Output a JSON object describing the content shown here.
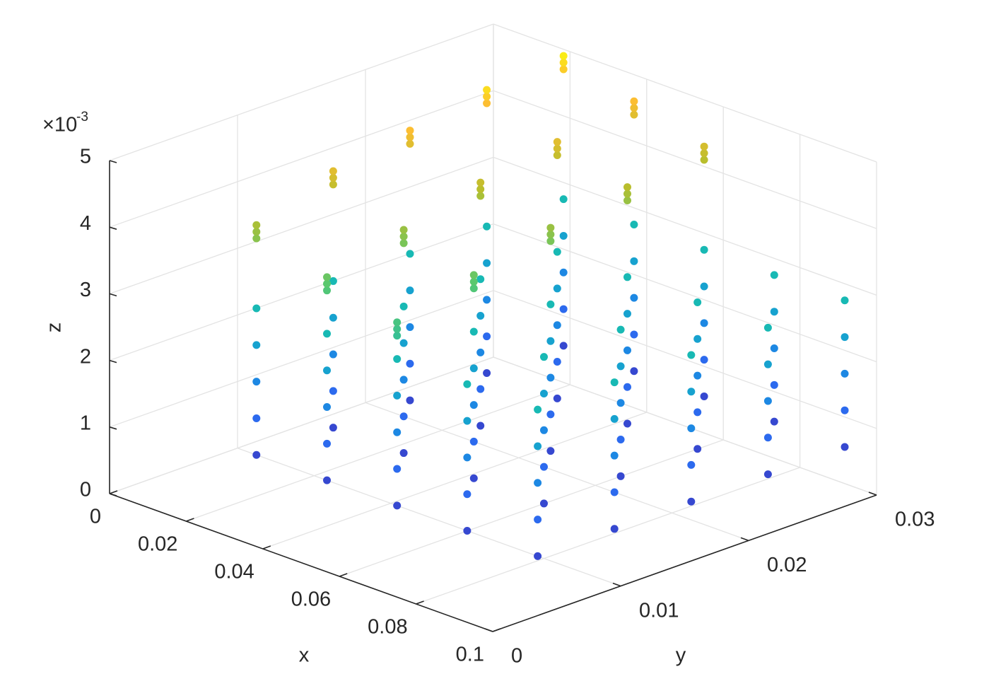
{
  "chart_data": {
    "type": "scatter3",
    "x_label": "x",
    "y_label": "y",
    "z_label": "z",
    "z_multiplier": {
      "base": "×10",
      "power": "-3"
    },
    "colormap": "parula",
    "xlim": [
      0,
      0.1
    ],
    "ylim": [
      0,
      0.03
    ],
    "zlim": [
      0,
      0.005
    ],
    "xticks": [
      0,
      0.02,
      0.04,
      0.06,
      0.08,
      0.1
    ],
    "yticks": [
      0,
      0.01,
      0.02,
      0.03
    ],
    "zticks": [
      0,
      {
        "value": 0.001,
        "label": "1"
      },
      {
        "value": 0.002,
        "label": "2"
      },
      {
        "value": 0.003,
        "label": "3"
      },
      {
        "value": 0.004,
        "label": "4"
      },
      {
        "value": 0.005,
        "label": "5"
      }
    ],
    "grid": true,
    "columns": [
      {
        "x": 0.0183,
        "y": 0.006,
        "z": [
          0.00055,
          0.0011,
          0.00165,
          0.0022,
          0.00275,
          0.0038,
          0.0039,
          0.004
        ]
      },
      {
        "x": 0.0183,
        "y": 0.012,
        "z": [
          0.00055,
          0.0011,
          0.00165,
          0.0022,
          0.00275,
          0.0042,
          0.0043,
          0.0044
        ]
      },
      {
        "x": 0.0183,
        "y": 0.018,
        "z": [
          0.00055,
          0.0011,
          0.00165,
          0.0022,
          0.00275,
          0.0044,
          0.0045,
          0.0046
        ]
      },
      {
        "x": 0.0183,
        "y": 0.024,
        "z": [
          0.00055,
          0.0011,
          0.00165,
          0.0022,
          0.00275,
          0.0046,
          0.0047,
          0.0048
        ]
      },
      {
        "x": 0.0183,
        "y": 0.03,
        "z": [
          0.00055,
          0.0011,
          0.00165,
          0.0022,
          0.00275,
          0.0047,
          0.0048,
          0.0049
        ]
      },
      {
        "x": 0.0367,
        "y": 0.006,
        "z": [
          0.00055,
          0.0011,
          0.00165,
          0.0022,
          0.00275,
          0.0034,
          0.0035,
          0.0036
        ]
      },
      {
        "x": 0.0367,
        "y": 0.012,
        "z": [
          0.00055,
          0.0011,
          0.00165,
          0.0022,
          0.00275,
          0.0037,
          0.0038,
          0.0039
        ]
      },
      {
        "x": 0.0367,
        "y": 0.018,
        "z": [
          0.00055,
          0.0011,
          0.00165,
          0.0022,
          0.00275,
          0.004,
          0.0041,
          0.0042
        ]
      },
      {
        "x": 0.0367,
        "y": 0.024,
        "z": [
          0.00055,
          0.0011,
          0.00165,
          0.0022,
          0.00275,
          0.0042,
          0.0043,
          0.0044
        ]
      },
      {
        "x": 0.0367,
        "y": 0.03,
        "z": [
          0.00055,
          0.0011,
          0.00165,
          0.0022,
          0.00275,
          0.0044,
          0.0045,
          0.0046
        ]
      },
      {
        "x": 0.055,
        "y": 0.006,
        "z": [
          0.00055,
          0.0011,
          0.00165,
          0.0022,
          0.00275,
          0.0031,
          0.0032,
          0.0033
        ]
      },
      {
        "x": 0.055,
        "y": 0.012,
        "z": [
          0.00055,
          0.0011,
          0.00165,
          0.0022,
          0.00275,
          0.0034,
          0.0035,
          0.0036
        ]
      },
      {
        "x": 0.055,
        "y": 0.018,
        "z": [
          0.00055,
          0.0011,
          0.00165,
          0.0022,
          0.00275,
          0.0037,
          0.0038,
          0.0039
        ]
      },
      {
        "x": 0.055,
        "y": 0.024,
        "z": [
          0.00055,
          0.0011,
          0.00165,
          0.0022,
          0.00275,
          0.0039,
          0.004,
          0.0041
        ]
      },
      {
        "x": 0.055,
        "y": 0.03,
        "z": [
          0.00055,
          0.0011,
          0.00165,
          0.0022,
          0.00275,
          0.0041,
          0.0042,
          0.0043
        ]
      },
      {
        "x": 0.0733,
        "y": 0.006,
        "z": [
          0.00055,
          0.0011,
          0.00165,
          0.0022,
          0.00275
        ]
      },
      {
        "x": 0.0733,
        "y": 0.012,
        "z": [
          0.00055,
          0.0011,
          0.00165,
          0.0022,
          0.00275
        ]
      },
      {
        "x": 0.0733,
        "y": 0.018,
        "z": [
          0.00055,
          0.0011,
          0.00165,
          0.0022,
          0.00275
        ]
      },
      {
        "x": 0.0733,
        "y": 0.024,
        "z": [
          0.00055,
          0.0011,
          0.00165,
          0.0022,
          0.00275
        ]
      },
      {
        "x": 0.0733,
        "y": 0.03,
        "z": [
          0.00055,
          0.0011,
          0.00165,
          0.0022,
          0.00275
        ]
      },
      {
        "x": 0.0917,
        "y": 0.006,
        "z": [
          0.00055,
          0.0011,
          0.00165,
          0.0022,
          0.00275
        ]
      },
      {
        "x": 0.0917,
        "y": 0.012,
        "z": [
          0.00055,
          0.0011,
          0.00165,
          0.0022,
          0.00275
        ]
      },
      {
        "x": 0.0917,
        "y": 0.018,
        "z": [
          0.00055,
          0.0011,
          0.00165,
          0.0022,
          0.00275
        ]
      },
      {
        "x": 0.0917,
        "y": 0.024,
        "z": [
          0.00055,
          0.0011,
          0.00165,
          0.0022,
          0.00275
        ]
      },
      {
        "x": 0.0917,
        "y": 0.03,
        "z": [
          0.00055,
          0.0011,
          0.00165,
          0.0022,
          0.00275
        ]
      }
    ]
  }
}
